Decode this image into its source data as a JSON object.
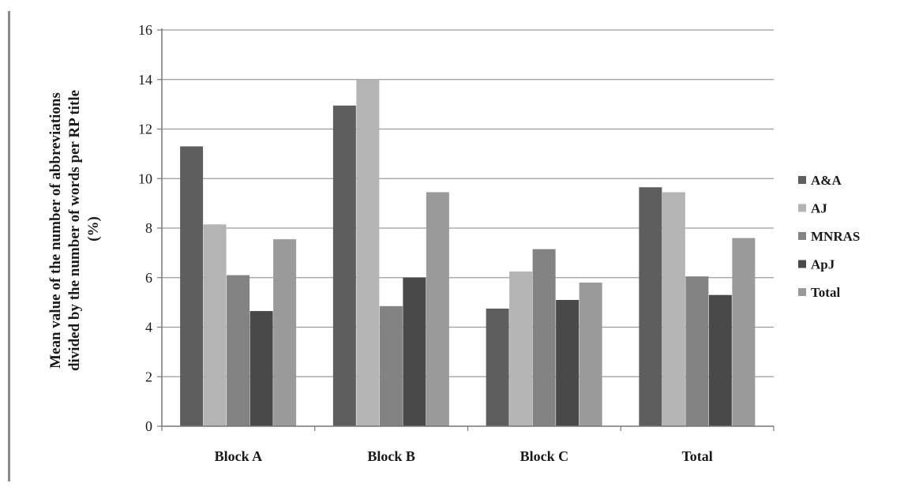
{
  "chart_data": {
    "type": "bar",
    "categories": [
      "Block A",
      "Block B",
      "Block C",
      "Total"
    ],
    "series": [
      {
        "name": "A&A",
        "color": "#5e5e5e",
        "values": [
          11.3,
          12.95,
          4.75,
          9.65
        ]
      },
      {
        "name": "AJ",
        "color": "#b4b4b4",
        "values": [
          8.15,
          14.0,
          6.25,
          9.45
        ]
      },
      {
        "name": "MNRAS",
        "color": "#838383",
        "values": [
          6.1,
          4.85,
          7.15,
          6.05
        ]
      },
      {
        "name": "ApJ",
        "color": "#494949",
        "values": [
          4.65,
          6.0,
          5.1,
          5.3
        ]
      },
      {
        "name": "Total",
        "color": "#9a9a9a",
        "values": [
          7.55,
          9.45,
          5.8,
          7.6
        ]
      }
    ],
    "title": "",
    "xlabel": "",
    "ylabel_lines": [
      "Mean value of the number of abbreviations",
      "divided by the number of words per RP title",
      "(%)"
    ],
    "yticks": [
      "0",
      "2",
      "4",
      "6",
      "8",
      "10",
      "12",
      "14",
      "16"
    ],
    "ylim": [
      0,
      16
    ],
    "grid": true,
    "legend_position": "right"
  }
}
